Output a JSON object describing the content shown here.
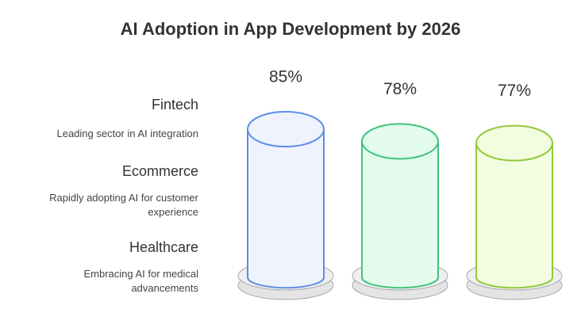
{
  "chart_data": {
    "type": "bar",
    "title": "AI Adoption in App Development by 2026",
    "categories": [
      "Fintech",
      "Ecommerce",
      "Healthcare"
    ],
    "descriptions": [
      "Leading sector in AI integration",
      "Rapidly adopting AI for customer experience",
      "Embracing AI for medical advancements"
    ],
    "values": [
      85,
      78,
      77
    ],
    "value_labels": [
      "85%",
      "78%",
      "77%"
    ],
    "colors": [
      "#5b8ee6",
      "#3fc47a",
      "#93c83a"
    ],
    "fills": [
      "#eef3fd",
      "#e3fbee",
      "#f2fde0"
    ]
  }
}
